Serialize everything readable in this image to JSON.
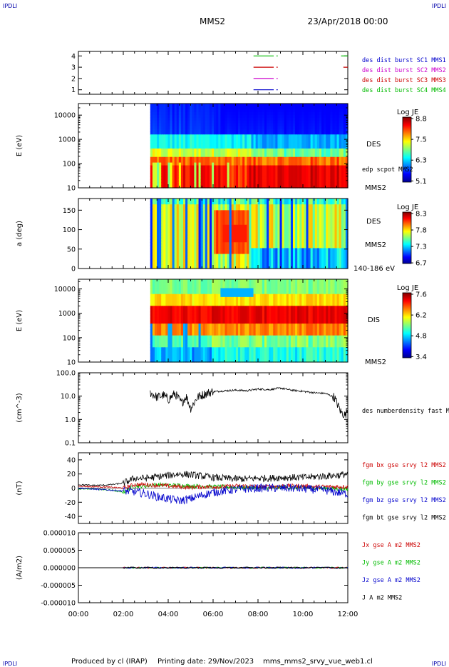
{
  "header": {
    "corner_left": "IPDLI",
    "corner_right": "IPDLI",
    "spacecraft": "MMS2",
    "date": "23/Apr/2018 00:00"
  },
  "footer": {
    "produced_by": "Produced by cl (IRAP)",
    "printing_date": "Printing date: 29/Nov/2023",
    "config": "mms_mms2_srvy_vue_web1.cl",
    "corner_left": "IPDLI",
    "corner_right": "IPDLI"
  },
  "time_axis": {
    "ticks": [
      "00:00",
      "02:00",
      "04:00",
      "06:00",
      "08:00",
      "10:00",
      "12:00"
    ],
    "range_hours": [
      0,
      12
    ]
  },
  "colors": {
    "mms1": "#0000cc",
    "mms2": "#cc00cc",
    "mms3": "#cc0000",
    "mms4": "#00bb00",
    "bx": "#cc0000",
    "by": "#00bb00",
    "bz": "#0000cc",
    "bt": "#000000"
  },
  "chart_data": [
    {
      "type": "line",
      "id": "availability",
      "yticks": [
        "1",
        "2",
        "3",
        "4"
      ],
      "ylim": [
        0.6,
        4.4
      ],
      "legend": [
        {
          "label": "des dist burst SC1 MMS1",
          "color": "#0000cc"
        },
        {
          "label": "des dist burst SC2 MMS2",
          "color": "#cc00cc"
        },
        {
          "label": "des dist burst SC3 MMS3",
          "color": "#cc0000"
        },
        {
          "label": "des dist burst SC4 MMS4",
          "color": "#00bb00"
        }
      ],
      "series": [
        {
          "sc": 4,
          "segments": [
            [
              7.8,
              8.7
            ],
            [
              8.82,
              8.88
            ],
            [
              11.7,
              12.0
            ]
          ]
        },
        {
          "sc": 3,
          "segments": [
            [
              7.8,
              8.7
            ],
            [
              8.82,
              8.88
            ],
            [
              11.8,
              12.0
            ]
          ]
        },
        {
          "sc": 2,
          "segments": [
            [
              7.8,
              8.7
            ],
            [
              8.82,
              8.88
            ]
          ]
        },
        {
          "sc": 1,
          "segments": [
            [
              7.8,
              8.7
            ],
            [
              8.82,
              8.88
            ]
          ]
        }
      ]
    },
    {
      "type": "heatmap",
      "id": "des-energy",
      "ylabel": "E (eV)",
      "yticks": [
        "10",
        "100",
        "1000",
        "10000"
      ],
      "ylog": true,
      "ylim": [
        10,
        30000
      ],
      "data_start_hour": 3.2,
      "side_labels": [
        "DES",
        "edp scpot MMS2",
        "MMS2"
      ],
      "colorbar": {
        "title": "Log JE",
        "ticks": [
          "8.8",
          "7.5",
          "6.3",
          "5.1"
        ],
        "range": [
          5.1,
          8.8
        ]
      }
    },
    {
      "type": "heatmap",
      "id": "des-pitch",
      "ylabel": "a (deg)",
      "yticks": [
        "0",
        "50",
        "100",
        "150"
      ],
      "ylim": [
        0,
        180
      ],
      "data_start_hour": 3.2,
      "side_labels": [
        "DES",
        "MMS2",
        "140-186 eV"
      ],
      "colorbar": {
        "title": "Log JE",
        "ticks": [
          "8.3",
          "7.8",
          "7.3",
          "6.7"
        ],
        "range": [
          6.7,
          8.3
        ]
      }
    },
    {
      "type": "heatmap",
      "id": "dis-energy",
      "ylabel": "E (eV)",
      "yticks": [
        "10",
        "100",
        "1000",
        "10000"
      ],
      "ylog": true,
      "ylim": [
        10,
        25000
      ],
      "data_start_hour": 3.2,
      "side_labels": [
        "DIS",
        "MMS2"
      ],
      "colorbar": {
        "title": "Log JE",
        "ticks": [
          "7.6",
          "6.2",
          "4.8",
          "3.4"
        ],
        "range": [
          3.4,
          7.6
        ]
      }
    },
    {
      "type": "line",
      "id": "density",
      "ylabel": "(cm^-3)",
      "yticks": [
        "0.1",
        "1.0",
        "10.0",
        "100.0"
      ],
      "ylog": true,
      "ylim": [
        0.1,
        100
      ],
      "legend": [
        {
          "label": "des numberdensity fast M",
          "color": "#000000"
        }
      ],
      "x": [
        3.2,
        3.5,
        3.8,
        4.0,
        4.3,
        4.6,
        4.8,
        5.0,
        5.3,
        5.6,
        5.9,
        6.2,
        6.6,
        7.0,
        7.5,
        8.0,
        8.5,
        9.0,
        9.5,
        10.0,
        10.5,
        11.0,
        11.4,
        11.7,
        11.9,
        12.0
      ],
      "y": [
        14,
        9,
        11,
        7,
        13,
        5,
        10,
        3,
        9,
        12,
        15,
        16,
        17,
        18,
        17,
        20,
        19,
        22,
        18,
        16,
        14,
        13,
        9,
        2,
        1.5,
        3
      ]
    },
    {
      "type": "line",
      "id": "magnetic-field",
      "ylabel": "(nT)",
      "yticks": [
        "-40",
        "-20",
        "0",
        "20",
        "40"
      ],
      "ylim": [
        -50,
        50
      ],
      "legend": [
        {
          "label": "fgm bx gse srvy l2 MMS2",
          "color": "#cc0000"
        },
        {
          "label": "fgm by gse srvy l2 MMS2",
          "color": "#00bb00"
        },
        {
          "label": "fgm bz gse srvy l2 MMS2",
          "color": "#0000cc"
        },
        {
          "label": "fgm bt gse srvy l2 MMS2",
          "color": "#000000"
        }
      ],
      "x": [
        0,
        0.5,
        1.0,
        1.5,
        2.0,
        2.5,
        3.0,
        3.5,
        4.0,
        4.5,
        5.0,
        5.5,
        6.0,
        6.5,
        7.0,
        7.5,
        8.0,
        8.5,
        9.0,
        9.5,
        10.0,
        10.5,
        11.0,
        11.5,
        12.0
      ],
      "series": [
        {
          "name": "bx",
          "values": [
            3,
            2,
            2,
            1,
            0,
            5,
            5,
            4,
            3,
            2,
            1,
            2,
            2,
            2,
            3,
            3,
            2,
            2,
            3,
            3,
            3,
            2,
            2,
            2,
            2
          ]
        },
        {
          "name": "by",
          "values": [
            -1,
            -1,
            -2,
            -3,
            -6,
            3,
            3,
            5,
            4,
            4,
            3,
            3,
            2,
            2,
            1,
            1,
            0,
            0,
            1,
            1,
            1,
            0,
            0,
            -1,
            -2
          ]
        },
        {
          "name": "bz",
          "values": [
            0,
            -1,
            -2,
            -3,
            -4,
            -5,
            -8,
            -12,
            -15,
            -18,
            -15,
            -10,
            -6,
            -4,
            -2,
            -1,
            0,
            0,
            0,
            0,
            -1,
            -2,
            -3,
            -6,
            -8
          ]
        },
        {
          "name": "bt",
          "values": [
            5,
            4,
            4,
            5,
            7,
            14,
            14,
            16,
            18,
            20,
            19,
            17,
            15,
            14,
            13,
            13,
            14,
            14,
            15,
            15,
            15,
            16,
            17,
            18,
            20
          ]
        }
      ]
    },
    {
      "type": "line",
      "id": "current-density",
      "ylabel": "(A/m2)",
      "yticks": [
        "-0.000010",
        "-0.000005",
        "0.000000",
        "0.000005",
        "0.000010"
      ],
      "ylim": [
        -1e-05,
        1e-05
      ],
      "legend": [
        {
          "label": "Jx gse A m2 MMS2",
          "color": "#cc0000"
        },
        {
          "label": "Jy gse A m2 MMS2",
          "color": "#00bb00"
        },
        {
          "label": "Jz gse A m2 MMS2",
          "color": "#0000cc"
        },
        {
          "label": "J A m2 MMS2",
          "color": "#000000"
        }
      ],
      "x": [
        0,
        12
      ],
      "series": [
        {
          "name": "Jx",
          "values": [
            0,
            0
          ]
        },
        {
          "name": "Jy",
          "values": [
            0,
            0
          ]
        },
        {
          "name": "Jz",
          "values": [
            0,
            0
          ]
        },
        {
          "name": "J",
          "values": [
            0,
            0
          ]
        }
      ]
    }
  ]
}
